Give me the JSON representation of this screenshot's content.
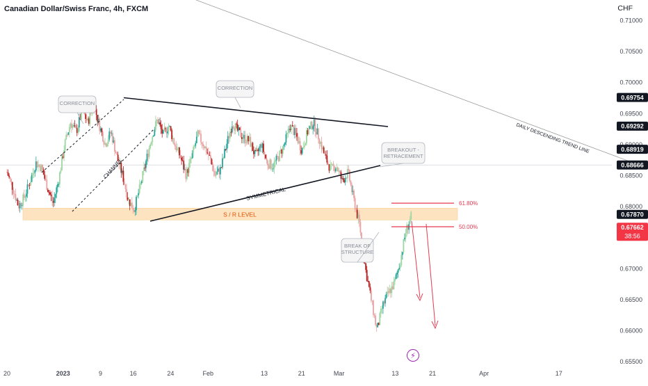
{
  "header": {
    "title": "Canadian Dollar/Swiss Franc, 4h, FXCM"
  },
  "axis": {
    "currency": "CHF"
  },
  "colors": {
    "up": "#26a69a",
    "up_light": "#9dd6a1",
    "down": "#b71c1c",
    "down_light": "#e8a3a3",
    "sr_zone": "#fde3c0",
    "sr_text": "#e65100",
    "fib": "#e53950",
    "price_badge": "#f23645",
    "dark_badge": "#131722",
    "trend_line": "#9e9e9e",
    "callout_border": "#b2b5be",
    "callout_text": "#8a8e99"
  },
  "chart_data": {
    "type": "candlestick",
    "symbol": "CAD/CHF",
    "timeframe": "4h",
    "y_ticks": [
      "0.71000",
      "0.70500",
      "0.70000",
      "0.69500",
      "0.69000",
      "0.68500",
      "0.68000",
      "0.67500",
      "0.67000",
      "0.66500",
      "0.66000",
      "0.65500"
    ],
    "y_tick_values": [
      0.71,
      0.705,
      0.7,
      0.695,
      0.69,
      0.685,
      0.68,
      0.675,
      0.67,
      0.665,
      0.66,
      0.655
    ],
    "x_ticks": [
      {
        "label": "20",
        "bold": false,
        "date": "2022-12-20"
      },
      {
        "label": "2023",
        "bold": true,
        "date": "2023-01-01"
      },
      {
        "label": "9",
        "bold": false,
        "date": "2023-01-09"
      },
      {
        "label": "16",
        "bold": false,
        "date": "2023-01-16"
      },
      {
        "label": "24",
        "bold": false,
        "date": "2023-01-24"
      },
      {
        "label": "Feb",
        "bold": false,
        "date": "2023-02-01"
      },
      {
        "label": "13",
        "bold": false,
        "date": "2023-02-13"
      },
      {
        "label": "21",
        "bold": false,
        "date": "2023-02-21"
      },
      {
        "label": "Mar",
        "bold": false,
        "date": "2023-03-01"
      },
      {
        "label": "13",
        "bold": false,
        "date": "2023-03-13"
      },
      {
        "label": "21",
        "bold": false,
        "date": "2023-03-21"
      },
      {
        "label": "Apr",
        "bold": false,
        "date": "2023-04-01"
      },
      {
        "label": "17",
        "bold": false,
        "date": "2023-04-17"
      }
    ],
    "price_badges": [
      {
        "label": "0.69754",
        "value": 0.69754,
        "style": "dark"
      },
      {
        "label": "0.69292",
        "value": 0.69292,
        "style": "dark"
      },
      {
        "label": "0.68919",
        "value": 0.68919,
        "style": "dark"
      },
      {
        "label": "0.68666",
        "value": 0.68666,
        "style": "dark"
      },
      {
        "label": "0.67870",
        "value": 0.6787,
        "style": "dark"
      },
      {
        "label": "0.67662",
        "value": 0.67662,
        "style": "red",
        "sub": "38:56"
      }
    ],
    "annotations": {
      "correction_1": "CORRECTION",
      "correction_2": "CORRECTION",
      "channel": "CHANNEL",
      "symmetrical": "SYMMETRICAL",
      "sr_level": "S / R LEVEL",
      "breakout": [
        "BREAKOUT -",
        "RETRACEMENT"
      ],
      "break_of_structure": [
        "BREAK OF",
        "STRUCTURE"
      ],
      "daily_trend": "DAILY DESCENDING TREND LINE",
      "fib_618": "61.80%",
      "fib_500": "50.00%"
    },
    "key_levels": {
      "sr_zone": [
        0.6778,
        0.6797
      ],
      "fib_618": 0.6805,
      "fib_500": 0.6767,
      "low_wick": 0.6596,
      "triangle_top": 0.6975
    },
    "series": [
      {
        "name": "CAD/CHF",
        "path": [
          0.6855,
          0.683,
          0.68,
          0.6815,
          0.684,
          0.687,
          0.6862,
          0.683,
          0.6805,
          0.6845,
          0.69,
          0.6935,
          0.692,
          0.6955,
          0.6935,
          0.6965,
          0.693,
          0.69,
          0.692,
          0.688,
          0.685,
          0.681,
          0.6795,
          0.683,
          0.687,
          0.691,
          0.694,
          0.6915,
          0.693,
          0.69,
          0.688,
          0.685,
          0.688,
          0.6915,
          0.69,
          0.688,
          0.685,
          0.686,
          0.69,
          0.6935,
          0.692,
          0.691,
          0.6905,
          0.688,
          0.69,
          0.687,
          0.6865,
          0.688,
          0.69,
          0.693,
          0.6915,
          0.689,
          0.692,
          0.6935,
          0.691,
          0.688,
          0.686,
          0.6865,
          0.684,
          0.6855,
          0.681,
          0.677,
          0.67,
          0.665,
          0.66,
          0.664,
          0.666,
          0.6675,
          0.671,
          0.676,
          0.6785
        ]
      }
    ]
  }
}
